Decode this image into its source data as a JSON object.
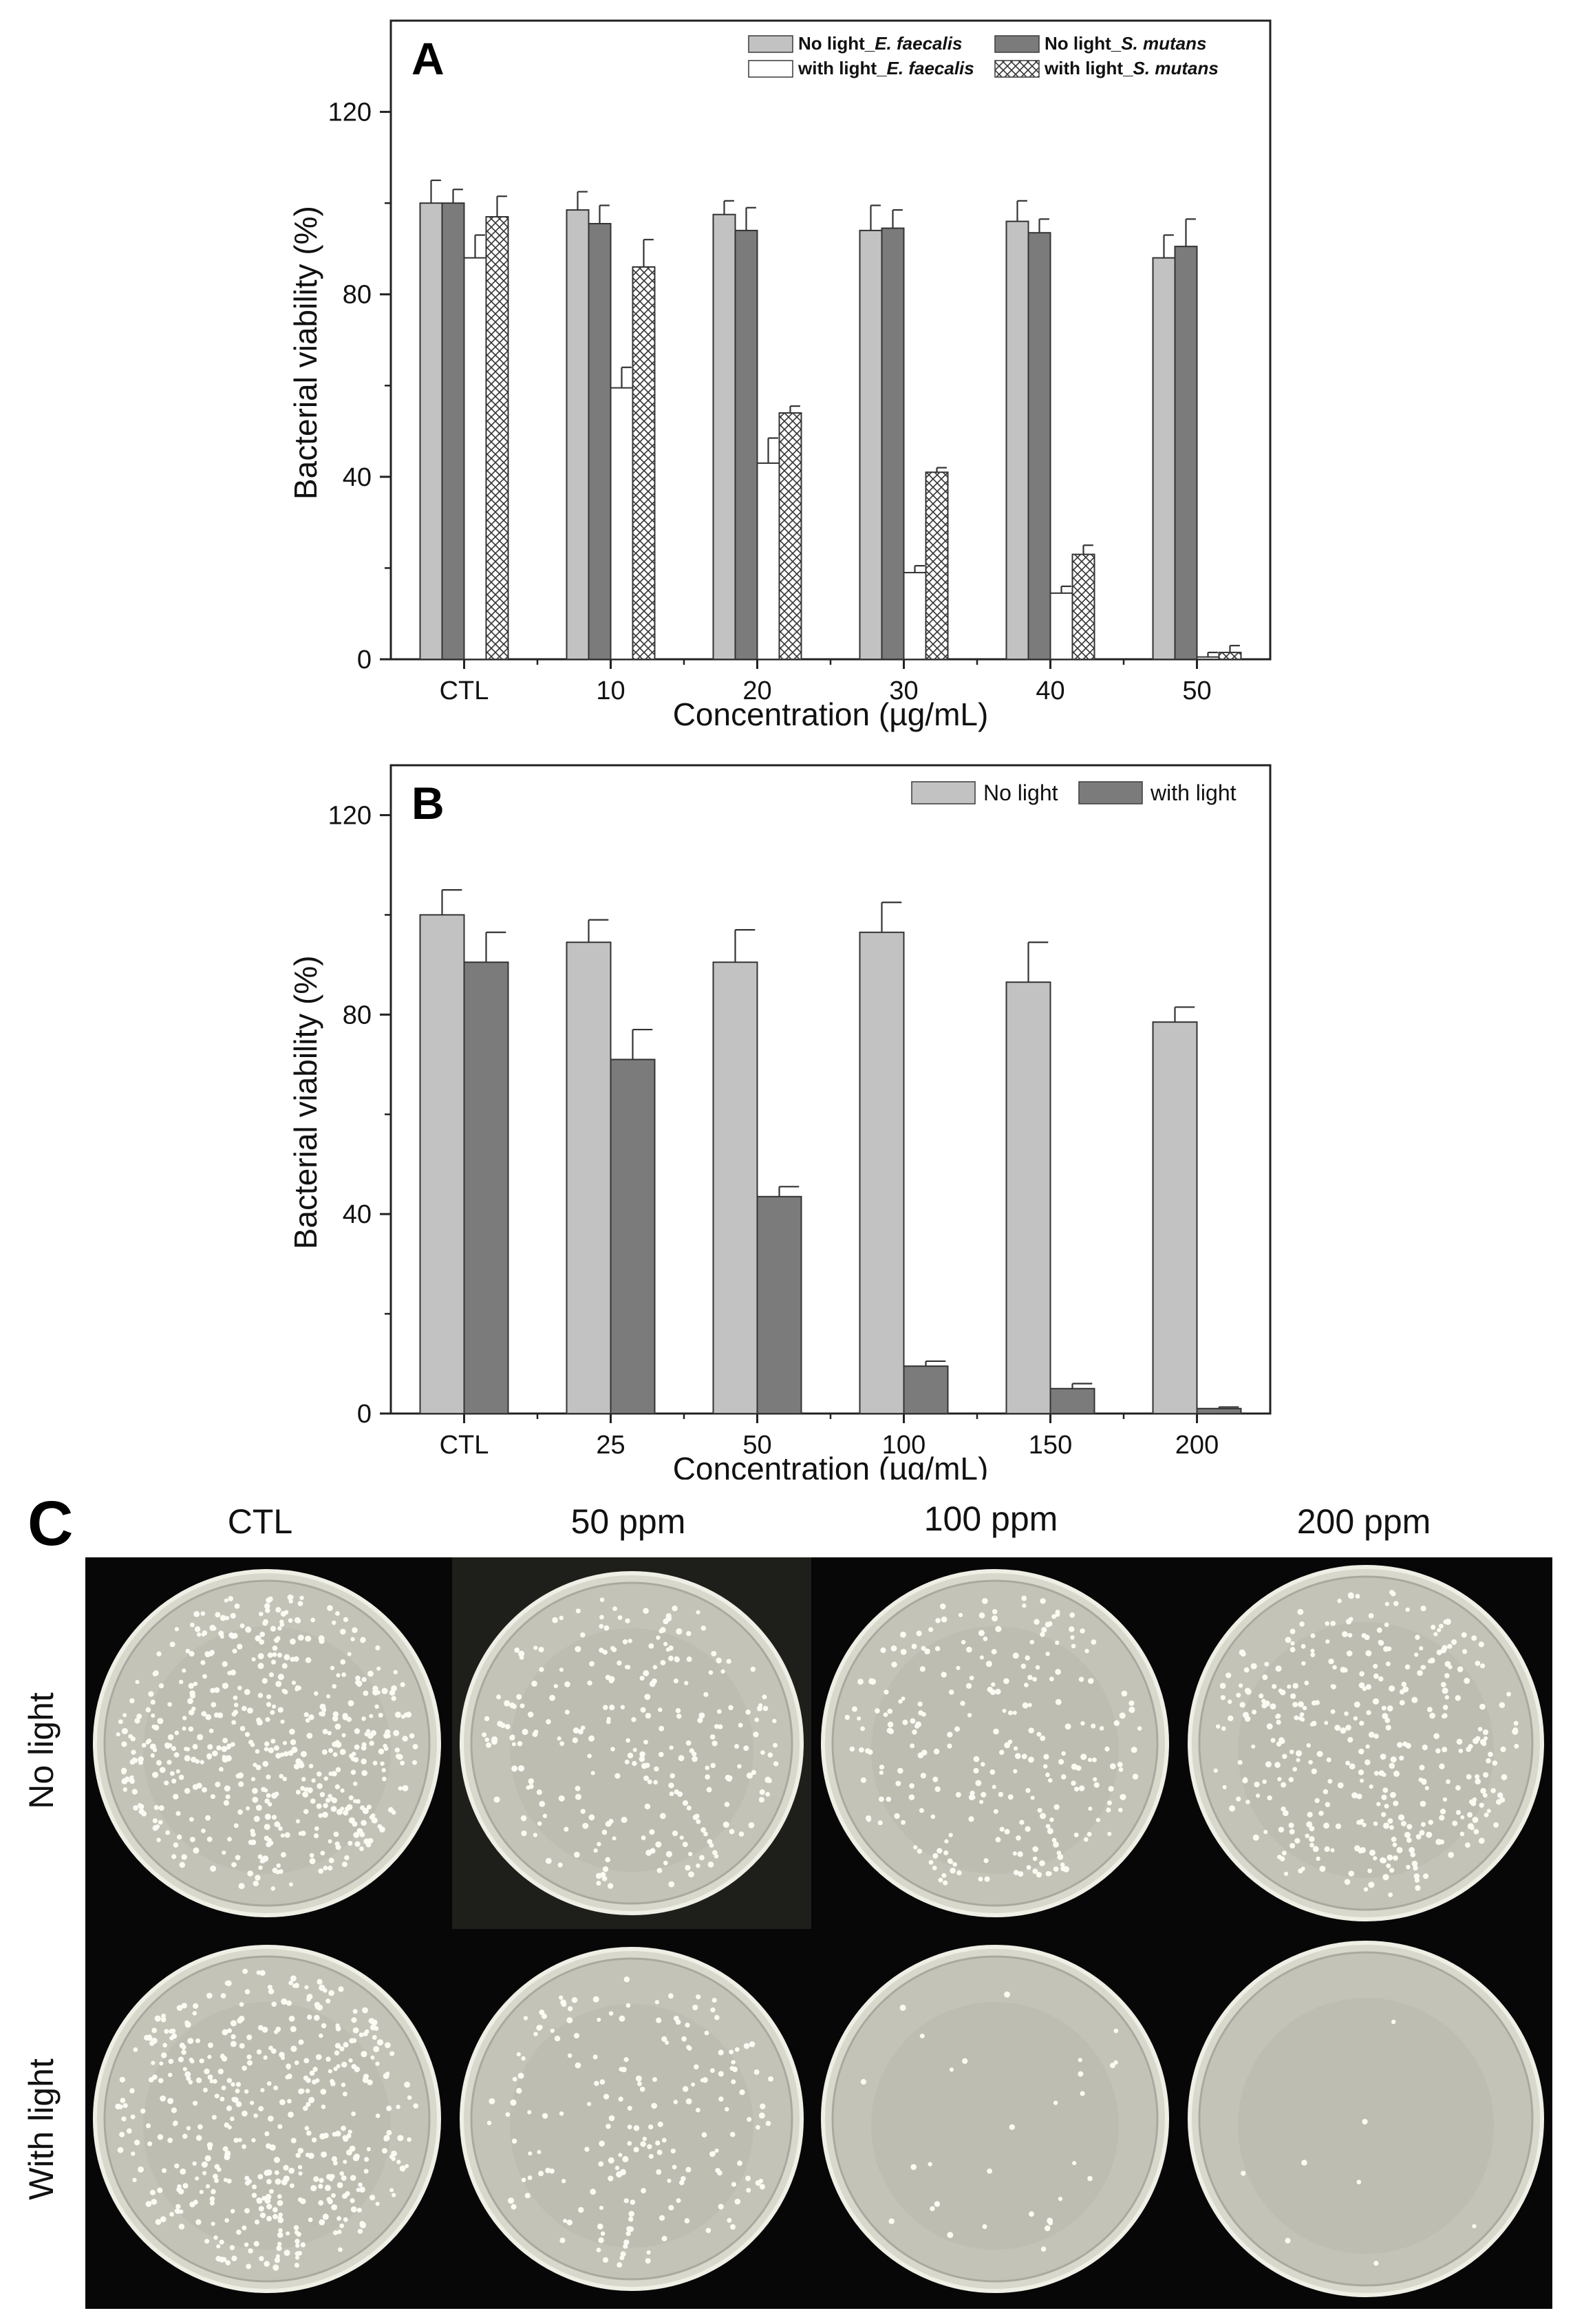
{
  "chart_data": [
    {
      "panel": "A",
      "type": "bar",
      "xlabel": "Concentration (µg/mL)",
      "ylabel": "Bacterial viability (%)",
      "ylim": [
        0,
        140
      ],
      "yticks": [
        0,
        40,
        80,
        120
      ],
      "categories": [
        "CTL",
        "10",
        "20",
        "30",
        "40",
        "50"
      ],
      "legend_position": "top-right",
      "series": [
        {
          "name": "No light_E. faecalis",
          "label_prefix": "No light_",
          "label_species": "E. faecalis",
          "style": "light-gray",
          "values": [
            100,
            98.5,
            97.5,
            94,
            96,
            88
          ],
          "errors": [
            5,
            4,
            3,
            5.5,
            4.5,
            5
          ]
        },
        {
          "name": "No light_S. mutans",
          "label_prefix": "No light_",
          "label_species": "S. mutans",
          "style": "dark-gray",
          "values": [
            100,
            95.5,
            94,
            94.5,
            93.5,
            90.5
          ],
          "errors": [
            3,
            4,
            5,
            4,
            3,
            6
          ]
        },
        {
          "name": "with light_E. faecalis",
          "label_prefix": "with light_",
          "label_species": "E. faecalis",
          "style": "white",
          "values": [
            88,
            59.5,
            43,
            19,
            14.5,
            0.5
          ],
          "errors": [
            5,
            4.5,
            5.5,
            1.5,
            1.5,
            1
          ]
        },
        {
          "name": "with light_S. mutans",
          "label_prefix": "with light_",
          "label_species": "S. mutans",
          "style": "crosshatch",
          "values": [
            97,
            86,
            54,
            41,
            23,
            1.5
          ],
          "errors": [
            4.5,
            6,
            1.5,
            1,
            2,
            1.5
          ]
        }
      ]
    },
    {
      "panel": "B",
      "type": "bar",
      "xlabel": "Concentration (µg/mL)",
      "ylabel": "Bacterial viability (%)",
      "ylim": [
        0,
        130
      ],
      "yticks": [
        0,
        40,
        80,
        120
      ],
      "categories": [
        "CTL",
        "25",
        "50",
        "100",
        "150",
        "200"
      ],
      "legend_position": "top-right",
      "series": [
        {
          "name": "No light",
          "style": "light-gray",
          "values": [
            100,
            94.5,
            90.5,
            96.5,
            86.5,
            78.5
          ],
          "errors": [
            5,
            4.5,
            6.5,
            6,
            8,
            3
          ]
        },
        {
          "name": "with light",
          "style": "dark-gray",
          "values": [
            90.5,
            71,
            43.5,
            9.5,
            5,
            1
          ],
          "errors": [
            6,
            6,
            2,
            1,
            1,
            0.3
          ]
        }
      ]
    }
  ],
  "panel_c": {
    "letter": "C",
    "columns": [
      "CTL",
      "50 ppm",
      "100 ppm",
      "200 ppm"
    ],
    "rows": [
      "No light",
      "With light"
    ]
  },
  "colors": {
    "light_gray": "#c2c2c2",
    "dark_gray": "#7b7b7b",
    "plate_background": "#070707",
    "agar": "#c3c4b7"
  }
}
